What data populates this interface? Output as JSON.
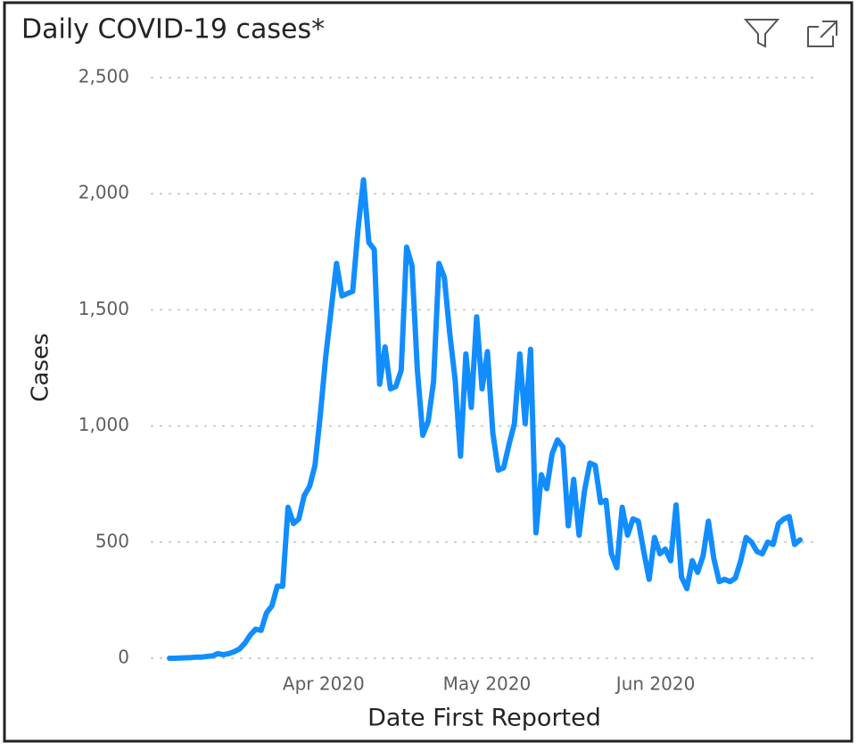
{
  "chart_data": {
    "type": "line",
    "title": "Daily COVID-19 cases*",
    "x_label": "Date First Reported",
    "y_label": "Cases",
    "categories": [
      null,
      null,
      null,
      null,
      null,
      null,
      null,
      null,
      null,
      null,
      null,
      null,
      null,
      null,
      null,
      null,
      null,
      null,
      null,
      null,
      null,
      null,
      null,
      null,
      null,
      null,
      null,
      null,
      null,
      null,
      null,
      null,
      null,
      null,
      null,
      null,
      null,
      null,
      null,
      null,
      null,
      null,
      null,
      null,
      null,
      null,
      null,
      null,
      null,
      null,
      null,
      null,
      null,
      null,
      null,
      null,
      null,
      null,
      null,
      null,
      null,
      null,
      null,
      null,
      null,
      null,
      null,
      null,
      null,
      null,
      null,
      null,
      null,
      null,
      null,
      null,
      null,
      null,
      null,
      null,
      null,
      null,
      null,
      null,
      null,
      null,
      null,
      null,
      null,
      null,
      null,
      null,
      null,
      null,
      null,
      null,
      null,
      null,
      null,
      null,
      null,
      null,
      null,
      null,
      null,
      null,
      null,
      null,
      null,
      null,
      null,
      null,
      null,
      null,
      null,
      null,
      null,
      null
    ],
    "series": [
      {
        "name": "Cases",
        "color": "#118dff",
        "values": [
          0,
          0,
          1,
          2,
          3,
          5,
          5,
          8,
          10,
          20,
          15,
          20,
          28,
          40,
          65,
          100,
          125,
          120,
          195,
          225,
          310,
          310,
          650,
          580,
          600,
          700,
          740,
          830,
          1050,
          1300,
          1500,
          1700,
          1560,
          1570,
          1580,
          1850,
          2060,
          1790,
          1760,
          1180,
          1340,
          1160,
          1170,
          1240,
          1770,
          1690,
          1240,
          960,
          1020,
          1190,
          1700,
          1640,
          1400,
          1200,
          870,
          1310,
          1080,
          1470,
          1160,
          1320,
          970,
          810,
          820,
          920,
          1010,
          1310,
          1010,
          1330,
          540,
          790,
          730,
          880,
          940,
          910,
          570,
          770,
          530,
          720,
          840,
          830,
          670,
          680,
          450,
          390,
          650,
          530,
          600,
          590,
          460,
          340,
          520,
          450,
          470,
          420,
          660,
          350,
          300,
          420,
          370,
          440,
          590,
          430,
          330,
          340,
          330,
          345,
          420,
          520,
          500,
          460,
          450,
          500,
          490,
          580,
          600,
          610,
          490,
          510
        ]
      }
    ],
    "xticks": [
      {
        "value": 28.6,
        "label": "Apr 2020"
      },
      {
        "value": 58.9,
        "label": "May 2020"
      },
      {
        "value": 90.2,
        "label": "Jun 2020"
      }
    ],
    "ylim": [
      0,
      2500
    ],
    "yticks": [
      0,
      {
        "value": 500,
        "label": "500"
      },
      {
        "value": 1000,
        "label": "1,000"
      },
      {
        "value": 1500,
        "label": "1,500"
      },
      {
        "value": 2000,
        "label": "2,000"
      },
      {
        "value": 2500,
        "label": "2,500"
      }
    ],
    "grid": true
  }
}
